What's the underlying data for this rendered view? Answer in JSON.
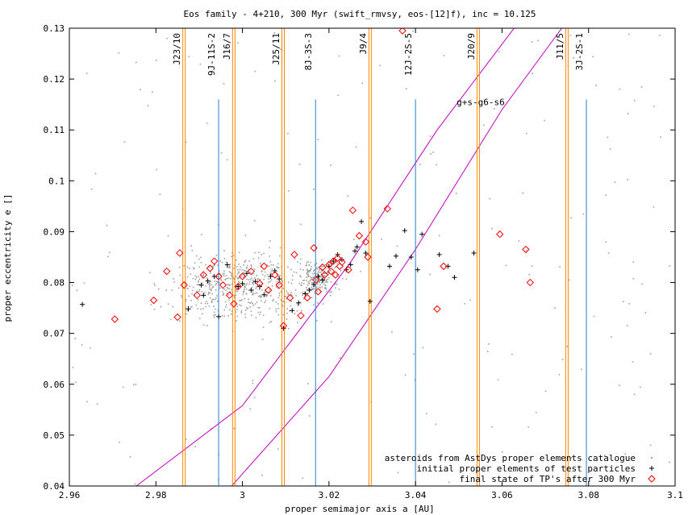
{
  "chart_data": {
    "type": "scatter",
    "title": "Eos family - 4+210, 300 Myr (swift_rmvsy, eos-[12]f), inc = 10.125",
    "xlabel": "proper semimajor axis a [AU]",
    "ylabel": "proper eccentricity e []",
    "xlim": [
      2.96,
      3.1
    ],
    "ylim": [
      0.04,
      0.13
    ],
    "xticks": [
      "2.96",
      "2.98",
      "3",
      "3.02",
      "3.04",
      "3.06",
      "3.08",
      "3.1"
    ],
    "xtick_values": [
      2.96,
      2.98,
      3.0,
      3.02,
      3.04,
      3.06,
      3.08,
      3.1
    ],
    "yticks": [
      "0.04",
      "0.05",
      "0.06",
      "0.07",
      "0.08",
      "0.09",
      "0.1",
      "0.11",
      "0.12",
      "0.13"
    ],
    "ytick_values": [
      0.04,
      0.05,
      0.06,
      0.07,
      0.08,
      0.09,
      0.1,
      0.11,
      0.12,
      0.13
    ],
    "grid": false,
    "legend_position": "bottom-right",
    "legend": [
      {
        "label": "asteroids from AstDys proper elements catalogue",
        "color": "#a0a0a0",
        "marker": "dot"
      },
      {
        "label": "initial proper elements of test particles",
        "color": "#000000",
        "marker": "plus"
      },
      {
        "label": "final state of TP's after 300 Myr",
        "color": "#ff0000",
        "marker": "diamond"
      }
    ],
    "resonances": [
      {
        "label": "J23/10",
        "a": 2.9865
      },
      {
        "label": "9J-11S-2",
        "a": 2.9945
      },
      {
        "label": "J16/7",
        "a": 2.998
      },
      {
        "label": "J25/11",
        "a": 3.0094
      },
      {
        "label": "8J-3S-3",
        "a": 3.0169
      },
      {
        "label": "J9/4",
        "a": 3.0295
      },
      {
        "label": "12J-2S-5",
        "a": 3.04
      },
      {
        "label": "J20/9",
        "a": 3.0545
      },
      {
        "label": "J11/5",
        "a": 3.075
      },
      {
        "label": "3J-2S-1",
        "a": 3.0795
      }
    ],
    "secular_label": "g+s-g6-s6",
    "secular_curves": [
      {
        "x": [
          2.9755,
          3.0,
          3.025,
          3.045,
          3.0628
        ],
        "y": [
          0.04,
          0.0558,
          0.084,
          0.11,
          0.13
        ]
      },
      {
        "x": [
          2.9975,
          3.02,
          3.04,
          3.06,
          3.0738
        ],
        "y": [
          0.04,
          0.0615,
          0.0865,
          0.114,
          0.13
        ]
      }
    ],
    "series": [
      {
        "name": "initial proper elements of test particles",
        "marker": "plus",
        "color": "#000000",
        "x": [
          2.963,
          2.9875,
          2.9905,
          2.992,
          2.9935,
          2.991,
          2.9945,
          2.9965,
          2.999,
          3.0,
          3.001,
          3.002,
          3.003,
          3.004,
          3.005,
          3.0065,
          3.0075,
          3.0085,
          3.0095,
          3.0115,
          3.013,
          3.0145,
          3.0155,
          3.0165,
          3.0175,
          3.0185,
          3.02,
          3.021,
          3.022,
          3.023,
          3.024,
          3.025,
          3.026,
          3.0265,
          3.0275,
          3.0285,
          3.0295,
          3.034,
          3.0355,
          3.0375,
          3.039,
          3.0405,
          3.0415,
          3.0455,
          3.0475,
          3.049,
          3.0535
        ],
        "y": [
          0.0757,
          0.0748,
          0.0795,
          0.0803,
          0.0812,
          0.0775,
          0.0733,
          0.0835,
          0.0792,
          0.0798,
          0.0818,
          0.0785,
          0.0802,
          0.0792,
          0.0776,
          0.0812,
          0.0823,
          0.0807,
          0.071,
          0.0745,
          0.076,
          0.0778,
          0.0785,
          0.0796,
          0.0812,
          0.0805,
          0.0832,
          0.0842,
          0.0855,
          0.0845,
          0.0825,
          0.0835,
          0.0862,
          0.087,
          0.092,
          0.0858,
          0.0763,
          0.0832,
          0.0852,
          0.0902,
          0.085,
          0.0825,
          0.0895,
          0.0855,
          0.0832,
          0.081,
          0.0858
        ]
      },
      {
        "name": "final state of TP's after 300 Myr",
        "marker": "diamond",
        "color": "#ff0000",
        "x": [
          2.9705,
          2.9795,
          2.9825,
          2.985,
          2.9855,
          2.9865,
          2.9895,
          2.991,
          2.9925,
          2.9935,
          2.9945,
          2.9955,
          2.997,
          2.998,
          2.999,
          3.0,
          3.002,
          3.004,
          3.005,
          3.006,
          3.0075,
          3.0085,
          3.0095,
          3.011,
          3.012,
          3.0135,
          3.015,
          3.0165,
          3.017,
          3.0175,
          3.0185,
          3.019,
          3.02,
          3.0205,
          3.021,
          3.0215,
          3.022,
          3.0225,
          3.023,
          3.0245,
          3.0255,
          3.027,
          3.0285,
          3.029,
          3.0335,
          3.037,
          3.045,
          3.0465,
          3.0595,
          3.0655,
          3.0665
        ],
        "y": [
          0.0728,
          0.0765,
          0.0822,
          0.0732,
          0.0858,
          0.0795,
          0.0775,
          0.0815,
          0.0828,
          0.0842,
          0.0812,
          0.0795,
          0.0775,
          0.0758,
          0.0792,
          0.0812,
          0.0822,
          0.0798,
          0.0832,
          0.0785,
          0.0815,
          0.0795,
          0.0715,
          0.077,
          0.0855,
          0.0735,
          0.077,
          0.0868,
          0.0805,
          0.0782,
          0.083,
          0.0815,
          0.0835,
          0.0822,
          0.0842,
          0.0815,
          0.0848,
          0.0832,
          0.084,
          0.0825,
          0.0942,
          0.0892,
          0.088,
          0.085,
          0.0945,
          0.1295,
          0.0748,
          0.0832,
          0.0895,
          0.0865,
          0.08
        ]
      }
    ]
  }
}
